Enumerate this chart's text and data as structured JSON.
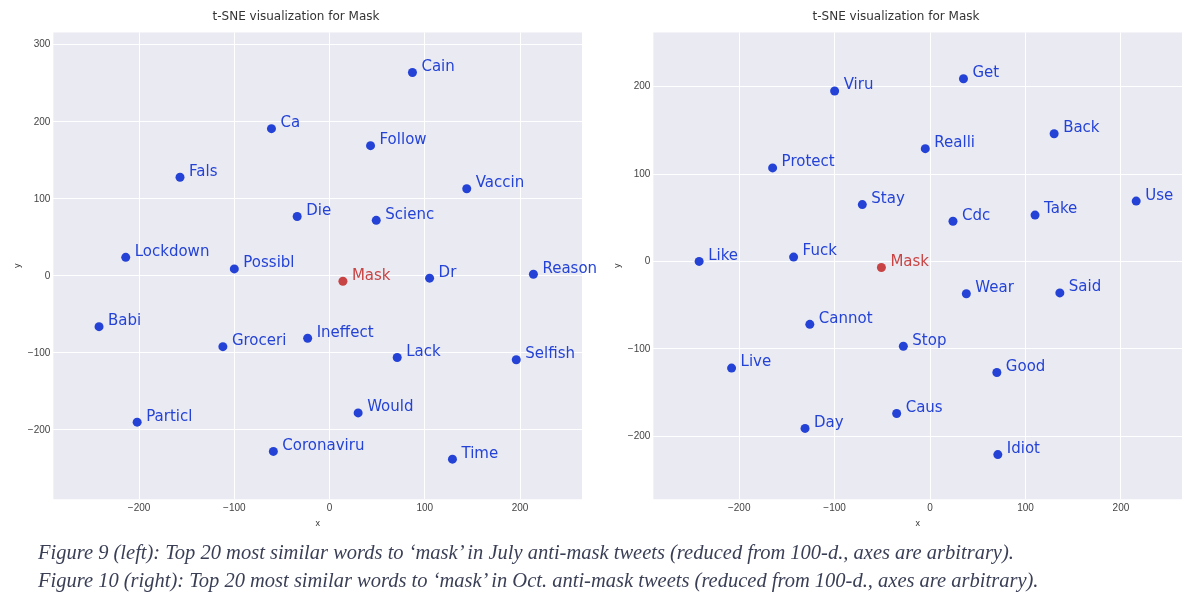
{
  "chart_data": [
    {
      "type": "scatter",
      "title": "t-SNE visualization for Mask",
      "xlabel": "x",
      "ylabel": "y",
      "xlim": [
        -290,
        265
      ],
      "ylim": [
        -290,
        316
      ],
      "xticks": [
        -200,
        -100,
        0,
        100,
        200
      ],
      "yticks": [
        -200,
        -100,
        0,
        100,
        200,
        300
      ],
      "grid": true,
      "legend": false,
      "marker": "circle",
      "series": [
        {
          "x": [
            87,
            -61,
            43,
            -157,
            144,
            -34,
            49,
            -214,
            -100,
            14,
            105,
            214,
            -242,
            -112,
            -23,
            71,
            196,
            30,
            -202,
            -59,
            129
          ],
          "values": [
            264,
            191,
            169,
            128,
            113,
            77,
            72,
            24,
            9,
            -7,
            -3,
            2,
            -66,
            -92,
            -81,
            -106,
            -109,
            -178,
            -190,
            -228,
            -238
          ],
          "value_labels": [
            "Cain",
            "Ca",
            "Follow",
            "Fals",
            "Vaccin",
            "Die",
            "Scienc",
            "Lockdown",
            "Possibl",
            "Mask",
            "Dr",
            "Reason",
            "Babi",
            "Groceri",
            "Ineffect",
            "Lack",
            "Selfish",
            "Would",
            "Particl",
            "Coronaviru",
            "Time"
          ],
          "colors": [
            "#2443d6",
            "#2443d6",
            "#2443d6",
            "#2443d6",
            "#2443d6",
            "#2443d6",
            "#2443d6",
            "#2443d6",
            "#2443d6",
            "#c84444",
            "#2443d6",
            "#2443d6",
            "#2443d6",
            "#2443d6",
            "#2443d6",
            "#2443d6",
            "#2443d6",
            "#2443d6",
            "#2443d6",
            "#2443d6",
            "#2443d6"
          ]
        }
      ],
      "annotations": [
        "Figure 9 (left): Top 20 most similar words to ‘mask’ in July anti-mask tweets (reduced from 100-d., axes are arbitrary)."
      ]
    },
    {
      "type": "scatter",
      "title": "t-SNE visualization for Mask",
      "xlabel": "x",
      "ylabel": "y",
      "xlim": [
        -290,
        264
      ],
      "ylim": [
        -272,
        262
      ],
      "xticks": [
        -200,
        -100,
        0,
        100,
        200
      ],
      "yticks": [
        -200,
        -100,
        0,
        100,
        200
      ],
      "grid": true,
      "legend": false,
      "marker": "circle",
      "series": [
        {
          "x": [
            -100,
            35,
            130,
            -5,
            -165,
            216,
            -71,
            110,
            24,
            -242,
            -143,
            -51,
            38,
            136,
            -126,
            -28,
            -208,
            70,
            -35,
            -131,
            71
          ],
          "values": [
            195,
            209,
            146,
            129,
            107,
            69,
            65,
            53,
            46,
            0,
            5,
            -7,
            -37,
            -36,
            -72,
            -97,
            -122,
            -127,
            -174,
            -191,
            -221
          ],
          "value_labels": [
            "Viru",
            "Get",
            "Back",
            "Realli",
            "Protect",
            "Use",
            "Stay",
            "Take",
            "Cdc",
            "Like",
            "Fuck",
            "Mask",
            "Wear",
            "Said",
            "Cannot",
            "Stop",
            "Live",
            "Good",
            "Caus",
            "Day",
            "Idiot"
          ],
          "colors": [
            "#2443d6",
            "#2443d6",
            "#2443d6",
            "#2443d6",
            "#2443d6",
            "#2443d6",
            "#2443d6",
            "#2443d6",
            "#2443d6",
            "#2443d6",
            "#2443d6",
            "#c84444",
            "#2443d6",
            "#2443d6",
            "#2443d6",
            "#2443d6",
            "#2443d6",
            "#2443d6",
            "#2443d6",
            "#2443d6",
            "#2443d6"
          ]
        }
      ],
      "annotations": [
        "Figure 10 (right): Top 20 most similar words to ‘mask’ in Oct. anti-mask tweets (reduced from 100-d., axes are arbitrary)."
      ]
    }
  ]
}
